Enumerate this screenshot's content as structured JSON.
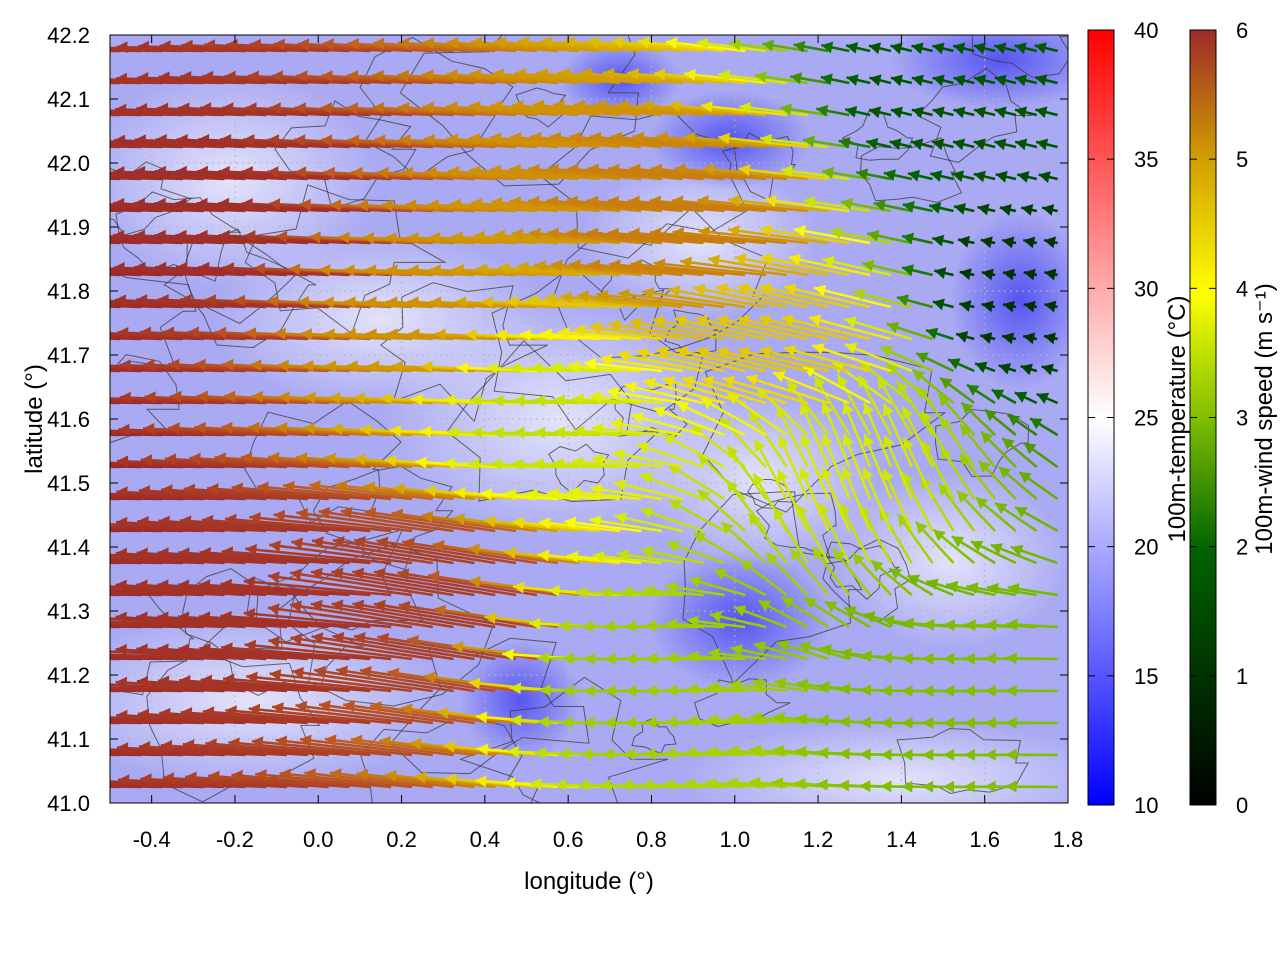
{
  "chart_data": {
    "type": "heatmap",
    "title": "",
    "xlabel": "longitude (°)",
    "ylabel": "latitude (°)",
    "xlim": [
      -0.5,
      1.8
    ],
    "ylim": [
      41.0,
      42.2
    ],
    "x_ticks": [
      "-0.4",
      "-0.2",
      "0.0",
      "0.2",
      "0.4",
      "0.6",
      "0.8",
      "1.0",
      "1.2",
      "1.4",
      "1.6",
      "1.8"
    ],
    "y_ticks": [
      "41.0",
      "41.1",
      "41.2",
      "41.3",
      "41.4",
      "41.5",
      "41.6",
      "41.7",
      "41.8",
      "41.9",
      "42.0",
      "42.1",
      "42.2"
    ],
    "grid": true,
    "background": {
      "field": "100m-temperature",
      "colorbar_label": "100m-temperature (°C)",
      "range": [
        10,
        40
      ],
      "ticks": [
        "10",
        "15",
        "20",
        "25",
        "30",
        "35",
        "40"
      ],
      "colors": [
        "#0000ff",
        "#ffffff",
        "#ff0000"
      ]
    },
    "vectors": {
      "field": "100m-wind speed",
      "colorbar_label": "100m-wind speed (m s⁻¹)",
      "range": [
        0,
        6
      ],
      "ticks": [
        "0",
        "1",
        "2",
        "3",
        "4",
        "5",
        "6"
      ],
      "colors": [
        "#000000",
        "#006400",
        "#7fbf00",
        "#ffff00",
        "#d2a000",
        "#c05a1e",
        "#9c2a2a"
      ],
      "samples": [
        {
          "lon": -0.45,
          "lat": 42.15,
          "u": -5.8,
          "v": 0.1
        },
        {
          "lon": -0.45,
          "lat": 41.85,
          "u": -6.0,
          "v": 0.2
        },
        {
          "lon": -0.45,
          "lat": 41.5,
          "u": -6.0,
          "v": 0.1
        },
        {
          "lon": -0.45,
          "lat": 41.2,
          "u": -5.9,
          "v": 0.1
        },
        {
          "lon": 0.0,
          "lat": 41.9,
          "u": -5.9,
          "v": 0.3
        },
        {
          "lon": 0.0,
          "lat": 41.3,
          "u": -5.8,
          "v": 0.4
        },
        {
          "lon": 0.4,
          "lat": 41.75,
          "u": -4.2,
          "v": 0.2
        },
        {
          "lon": 0.4,
          "lat": 41.3,
          "u": -5.5,
          "v": 0.9
        },
        {
          "lon": 0.6,
          "lat": 41.6,
          "u": -2.5,
          "v": 0.1
        },
        {
          "lon": 0.8,
          "lat": 41.2,
          "u": -2.2,
          "v": 0.0
        },
        {
          "lon": 1.0,
          "lat": 41.9,
          "u": -4.5,
          "v": 0.4
        },
        {
          "lon": 1.2,
          "lat": 41.7,
          "u": -3.5,
          "v": 0.8
        },
        {
          "lon": 1.3,
          "lat": 41.5,
          "u": -1.0,
          "v": 2.5
        },
        {
          "lon": 1.6,
          "lat": 41.15,
          "u": -2.0,
          "v": 0.0
        },
        {
          "lon": 1.7,
          "lat": 41.8,
          "u": -0.5,
          "v": 0.1
        },
        {
          "lon": 1.5,
          "lat": 42.1,
          "u": -0.8,
          "v": 0.2
        }
      ]
    }
  }
}
